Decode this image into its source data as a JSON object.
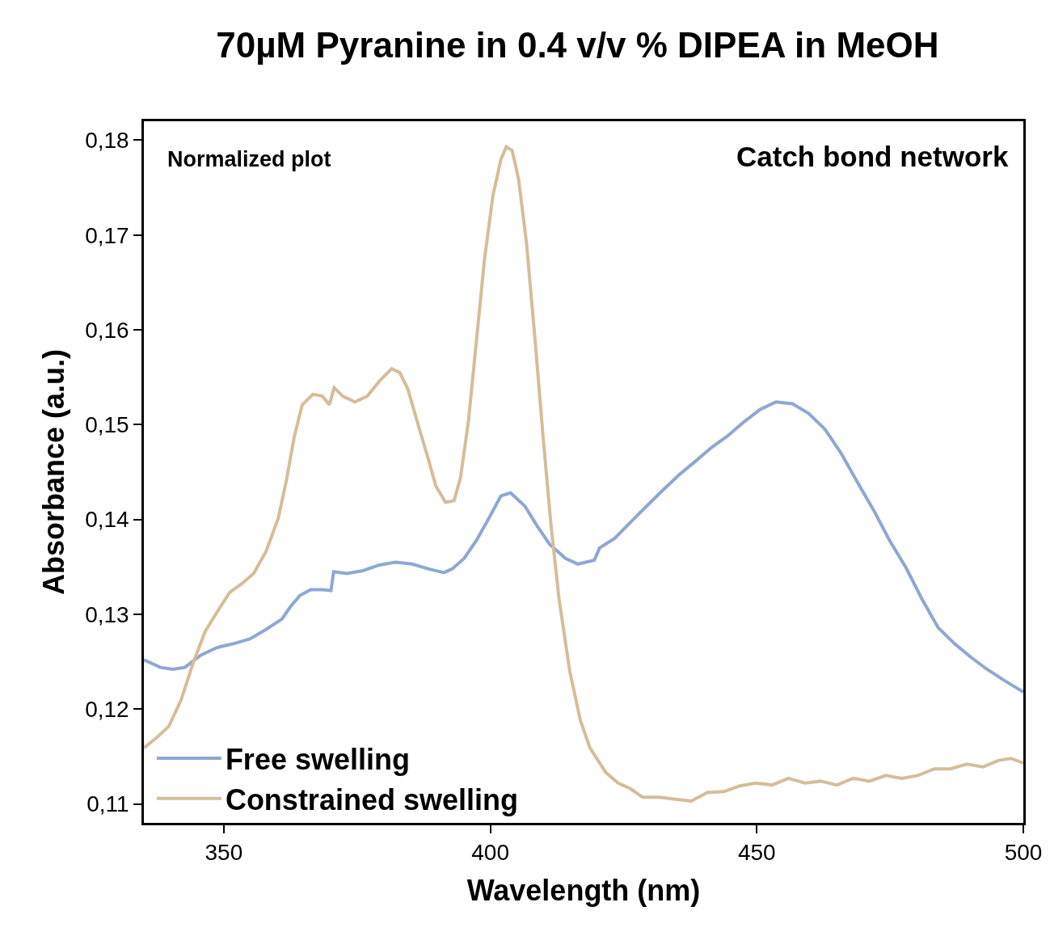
{
  "chart_data": {
    "type": "line",
    "title": "70µM Pyranine in 0.4 v/v % DIPEA in MeOH",
    "xlabel": "Wavelength (nm)",
    "ylabel": "Absorbance (a.u.)",
    "annotations": [
      "Normalized plot",
      "Catch bond network"
    ],
    "xlim": [
      335,
      500
    ],
    "xticks": [
      350,
      400,
      450,
      500
    ],
    "ylim": [
      0.108,
      0.182
    ],
    "yticks": [
      {
        "value": 0.11,
        "label": "0,11"
      },
      {
        "value": 0.12,
        "label": "0,12"
      },
      {
        "value": 0.13,
        "label": "0,13"
      },
      {
        "value": 0.14,
        "label": "0,14"
      },
      {
        "value": 0.15,
        "label": "0,15"
      },
      {
        "value": 0.16,
        "label": "0,16"
      },
      {
        "value": 0.17,
        "label": "0,17"
      },
      {
        "value": 0.18,
        "label": "0,18"
      }
    ],
    "grid": false,
    "legend": "bottom left",
    "marker": "none",
    "line_style": "solid",
    "series": [
      {
        "name": "Free swelling",
        "color": "#8ea7d2",
        "x": [
          335,
          338.1,
          340.4,
          342.7,
          345.7,
          348.8,
          351.8,
          354.9,
          357.9,
          360.9,
          362.5,
          364.3,
          366.3,
          368.5,
          370.1,
          370.6,
          373.1,
          376.1,
          379.2,
          382.2,
          385.3,
          388.3,
          391.3,
          392.9,
          395.1,
          397.4,
          399.7,
          402,
          403.8,
          406.5,
          408.8,
          411.1,
          414.1,
          416.4,
          419.5,
          420.5,
          423.3,
          426.3,
          429.3,
          432.4,
          435.4,
          438.4,
          441.5,
          444.5,
          447.6,
          450.6,
          453.6,
          456.7,
          459.7,
          462.8,
          465.8,
          468.8,
          471.9,
          474.9,
          478,
          481,
          484,
          487.1,
          490.1,
          493.2,
          496.2,
          500
        ],
        "values": [
          0.1252,
          0.1244,
          0.1242,
          0.1244,
          0.1257,
          0.1265,
          0.1269,
          0.1274,
          0.1284,
          0.1295,
          0.1308,
          0.132,
          0.1326,
          0.1326,
          0.1325,
          0.1345,
          0.1343,
          0.1346,
          0.1352,
          0.1355,
          0.1353,
          0.1348,
          0.1344,
          0.1348,
          0.1359,
          0.1378,
          0.1401,
          0.1425,
          0.1428,
          0.1414,
          0.1393,
          0.1374,
          0.1359,
          0.1353,
          0.1357,
          0.137,
          0.138,
          0.1397,
          0.1414,
          0.1431,
          0.1447,
          0.1461,
          0.1476,
          0.1488,
          0.1503,
          0.1516,
          0.1524,
          0.1522,
          0.1512,
          0.1495,
          0.147,
          0.144,
          0.141,
          0.1378,
          0.1349,
          0.1316,
          0.1286,
          0.1269,
          0.1255,
          0.1242,
          0.1231,
          0.1218
        ]
      },
      {
        "name": "Constrained swelling",
        "color": "#d5bd9a",
        "x": [
          335,
          337.4,
          339.7,
          342,
          344.2,
          346.5,
          348.8,
          351.1,
          353.3,
          355.6,
          357.9,
          360.2,
          361.7,
          363.2,
          364.7,
          366.7,
          368.5,
          369.8,
          370.7,
          372.3,
          374.6,
          376.9,
          379.2,
          381.5,
          383,
          384.5,
          386.5,
          388.3,
          389.8,
          391.6,
          393.2,
          394.4,
          395.9,
          397.4,
          398.9,
          400.5,
          402,
          403,
          404.1,
          405.3,
          406.8,
          408.4,
          409.9,
          411.4,
          412.9,
          414.9,
          416.9,
          418.7,
          420.2,
          421.7,
          424,
          426.3,
          428.6,
          431.6,
          434.7,
          437.7,
          440.7,
          443.8,
          446.8,
          449.8,
          452.9,
          455.9,
          459,
          462,
          465,
          468.1,
          471.1,
          474.2,
          477.2,
          480.2,
          483.3,
          486.3,
          489.4,
          492.4,
          495.4,
          497.7,
          500
        ],
        "values": [
          0.1159,
          0.117,
          0.1182,
          0.121,
          0.1248,
          0.1282,
          0.1303,
          0.1323,
          0.1332,
          0.1343,
          0.1366,
          0.1401,
          0.144,
          0.1487,
          0.1521,
          0.1532,
          0.153,
          0.1521,
          0.1539,
          0.153,
          0.1524,
          0.153,
          0.1546,
          0.1559,
          0.1555,
          0.1538,
          0.1499,
          0.1465,
          0.1435,
          0.1418,
          0.142,
          0.1444,
          0.1504,
          0.1589,
          0.1674,
          0.1742,
          0.178,
          0.1793,
          0.1789,
          0.1759,
          0.1691,
          0.1589,
          0.1487,
          0.1393,
          0.1316,
          0.124,
          0.1188,
          0.1159,
          0.1146,
          0.1133,
          0.1122,
          0.1116,
          0.1107,
          0.1107,
          0.1105,
          0.1103,
          0.1112,
          0.1113,
          0.1119,
          0.1122,
          0.112,
          0.1127,
          0.1122,
          0.1124,
          0.112,
          0.1127,
          0.1124,
          0.113,
          0.1127,
          0.113,
          0.1137,
          0.1137,
          0.1142,
          0.1139,
          0.1146,
          0.1148,
          0.1143
        ]
      }
    ]
  }
}
